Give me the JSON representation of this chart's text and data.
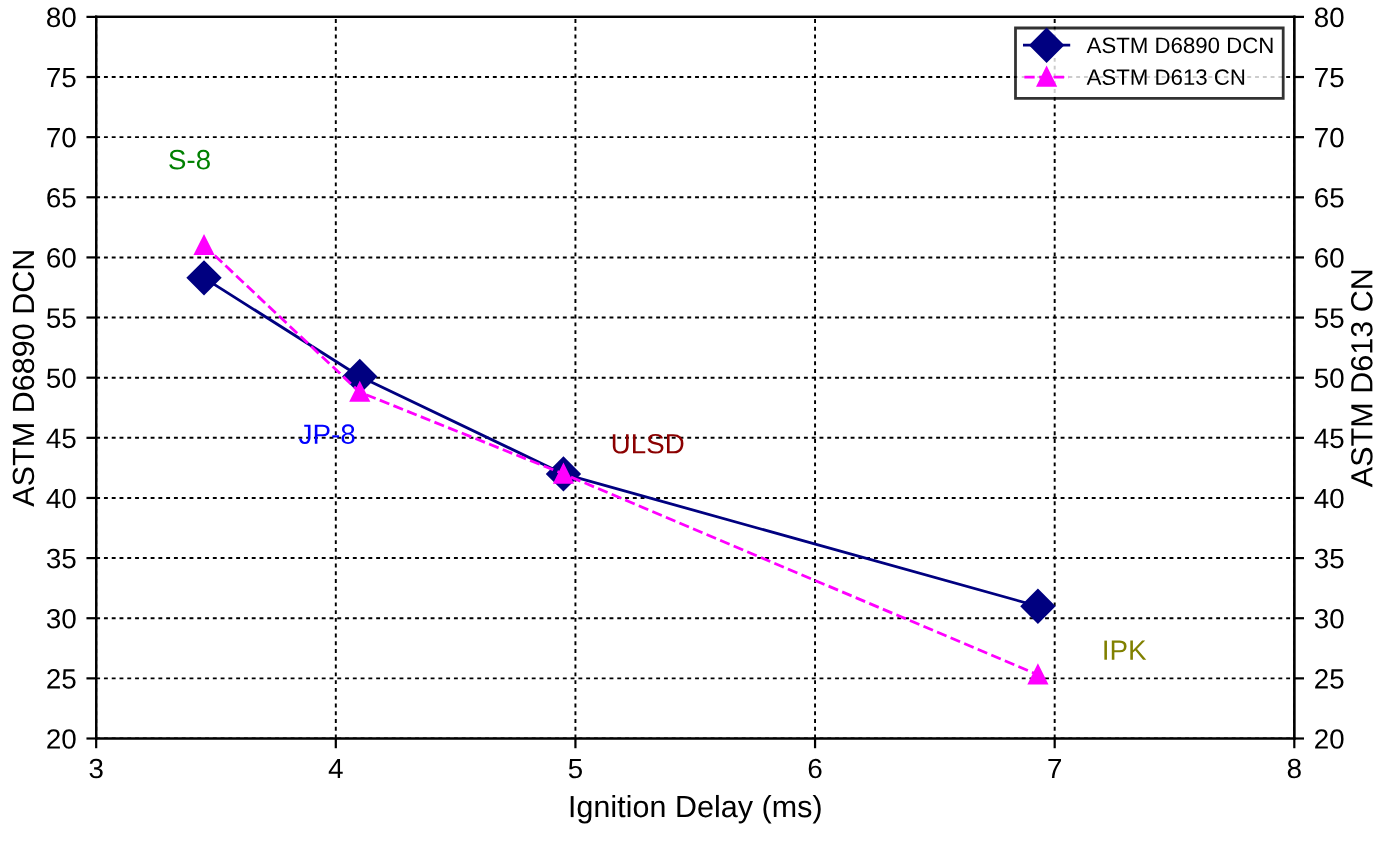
{
  "chart_data": {
    "type": "line",
    "xlabel": "Ignition Delay (ms)",
    "ylabel": "ASTM D6890 DCN",
    "y2label": "ASTM D613 CN",
    "series": [
      {
        "name": "ASTM D6890 DCN",
        "color": "#000080",
        "marker": "diamond",
        "line_style": "solid",
        "x": [
          3.45,
          4.1,
          4.95,
          6.93
        ],
        "values": [
          58.3,
          50.1,
          42,
          31
        ]
      },
      {
        "name": "ASTM D613 CN",
        "color": "#ff00ff",
        "marker": "triangle",
        "line_style": "dashed",
        "x": [
          3.45,
          4.1,
          4.95,
          6.93
        ],
        "values": [
          61,
          48.8,
          42,
          25.3
        ]
      }
    ],
    "xlim": [
      3,
      8
    ],
    "xticks": [
      3,
      4,
      5,
      6,
      7,
      8
    ],
    "ylim": [
      20,
      80
    ],
    "yticks": [
      20,
      25,
      30,
      35,
      40,
      45,
      50,
      55,
      60,
      65,
      70,
      75,
      80
    ],
    "y2lim": [
      20,
      80
    ],
    "y2ticks": [
      20,
      25,
      30,
      35,
      40,
      45,
      50,
      55,
      60,
      65,
      70,
      75,
      80
    ],
    "grid": true,
    "legend": "top right",
    "annotations": [
      {
        "text": "S-8",
        "x": 3.45,
        "y": 61
      },
      {
        "text": "JP-8",
        "x": 4.1,
        "y": 48.8
      },
      {
        "text": "ULSD",
        "x": 4.95,
        "y": 42
      },
      {
        "text": "IPK",
        "x": 6.93,
        "y": 25.3
      }
    ]
  }
}
